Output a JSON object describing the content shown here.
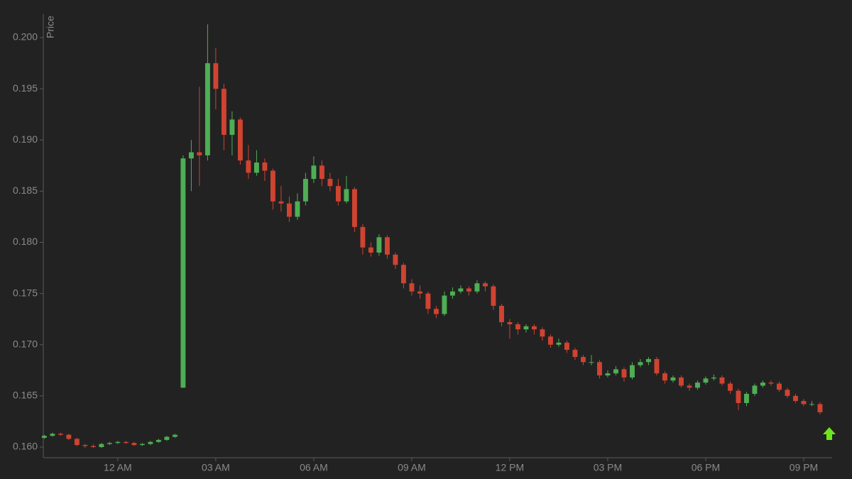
{
  "chart_data": {
    "type": "candlestick",
    "y_label": "Price",
    "x": [
      -2.25,
      -2,
      -1.75,
      -1.5,
      -1.25,
      -1,
      -0.75,
      -0.5,
      -0.25,
      0,
      0.25,
      0.5,
      0.75,
      1,
      1.25,
      1.5,
      1.75,
      2,
      2.25,
      2.5,
      2.75,
      3,
      3.25,
      3.5,
      3.75,
      4,
      4.25,
      4.5,
      4.75,
      5,
      5.25,
      5.5,
      5.75,
      6,
      6.25,
      6.5,
      6.75,
      7,
      7.25,
      7.5,
      7.75,
      8,
      8.25,
      8.5,
      8.75,
      9,
      9.25,
      9.5,
      9.75,
      10,
      10.25,
      10.5,
      10.75,
      11,
      11.25,
      11.5,
      11.75,
      12,
      12.25,
      12.5,
      12.75,
      13,
      13.25,
      13.5,
      13.75,
      14,
      14.25,
      14.5,
      14.75,
      15,
      15.25,
      15.5,
      15.75,
      16,
      16.25,
      16.5,
      16.75,
      17,
      17.25,
      17.5,
      17.75,
      18,
      18.25,
      18.5,
      18.75,
      19,
      19.25,
      19.5,
      19.75,
      20,
      20.25,
      20.5,
      20.75,
      21,
      21.25,
      21.5
    ],
    "open": [
      0.1609,
      0.1611,
      0.1613,
      0.1612,
      0.1608,
      0.1602,
      0.1601,
      0.16,
      0.1603,
      0.1604,
      0.1605,
      0.1604,
      0.1602,
      0.1603,
      0.1605,
      0.1607,
      0.161,
      0.1658,
      0.1882,
      0.1888,
      0.1885,
      0.1975,
      0.195,
      0.1905,
      0.192,
      0.188,
      0.1868,
      0.1878,
      0.187,
      0.184,
      0.1838,
      0.1825,
      0.184,
      0.1862,
      0.1875,
      0.1862,
      0.1855,
      0.184,
      0.1852,
      0.1815,
      0.1795,
      0.179,
      0.1805,
      0.1788,
      0.1778,
      0.176,
      0.1752,
      0.175,
      0.1735,
      0.173,
      0.1748,
      0.1752,
      0.1755,
      0.1752,
      0.176,
      0.1757,
      0.1738,
      0.1722,
      0.172,
      0.1715,
      0.1718,
      0.1715,
      0.1708,
      0.17,
      0.1702,
      0.1695,
      0.1688,
      0.1683,
      0.1683,
      0.167,
      0.1672,
      0.1676,
      0.1668,
      0.168,
      0.1683,
      0.1686,
      0.1672,
      0.1665,
      0.1668,
      0.166,
      0.1658,
      0.1663,
      0.1667,
      0.1668,
      0.1662,
      0.1655,
      0.1643,
      0.1652,
      0.166,
      0.1663,
      0.1662,
      0.1656,
      0.165,
      0.1645,
      0.1642,
      0.1642
    ],
    "high": [
      0.1612,
      0.1614,
      0.1614,
      0.1613,
      0.1609,
      0.1603,
      0.1603,
      0.1604,
      0.1605,
      0.1606,
      0.1606,
      0.1605,
      0.1604,
      0.1606,
      0.1608,
      0.1611,
      0.1613,
      0.1885,
      0.19,
      0.1952,
      0.2013,
      0.199,
      0.1955,
      0.1928,
      0.1922,
      0.1895,
      0.189,
      0.1882,
      0.1872,
      0.1855,
      0.1845,
      0.1848,
      0.1868,
      0.1884,
      0.188,
      0.1868,
      0.1862,
      0.1865,
      0.1854,
      0.1818,
      0.18,
      0.1808,
      0.1807,
      0.179,
      0.178,
      0.1764,
      0.1758,
      0.1752,
      0.1738,
      0.1752,
      0.1756,
      0.1758,
      0.1757,
      0.1763,
      0.1762,
      0.1759,
      0.174,
      0.1725,
      0.1722,
      0.172,
      0.172,
      0.1717,
      0.171,
      0.1706,
      0.1704,
      0.1697,
      0.169,
      0.169,
      0.1685,
      0.1675,
      0.1679,
      0.1678,
      0.1683,
      0.1686,
      0.1688,
      0.1688,
      0.1674,
      0.167,
      0.167,
      0.1662,
      0.1665,
      0.1669,
      0.1671,
      0.167,
      0.1664,
      0.1657,
      0.1654,
      0.1662,
      0.1665,
      0.1665,
      0.1664,
      0.1658,
      0.1652,
      0.1647,
      0.1645,
      0.1644
    ],
    "low": [
      0.1608,
      0.161,
      0.1611,
      0.1607,
      0.1601,
      0.1599,
      0.1599,
      0.1599,
      0.1602,
      0.1603,
      0.1603,
      0.1601,
      0.1601,
      0.1602,
      0.1604,
      0.1606,
      0.1609,
      0.1658,
      0.185,
      0.1855,
      0.188,
      0.193,
      0.189,
      0.1885,
      0.1876,
      0.1862,
      0.1865,
      0.186,
      0.1832,
      0.183,
      0.182,
      0.1822,
      0.1836,
      0.1858,
      0.1855,
      0.185,
      0.1836,
      0.1838,
      0.181,
      0.1788,
      0.1786,
      0.1787,
      0.1784,
      0.1774,
      0.1755,
      0.1748,
      0.1745,
      0.173,
      0.1726,
      0.1728,
      0.1745,
      0.175,
      0.1748,
      0.175,
      0.1752,
      0.1734,
      0.1718,
      0.1706,
      0.171,
      0.1712,
      0.171,
      0.1704,
      0.1697,
      0.1698,
      0.1692,
      0.1685,
      0.168,
      0.168,
      0.1667,
      0.1668,
      0.167,
      0.1664,
      0.1666,
      0.1678,
      0.168,
      0.167,
      0.1662,
      0.1663,
      0.1658,
      0.1655,
      0.1656,
      0.1661,
      0.1665,
      0.166,
      0.1652,
      0.1636,
      0.164,
      0.165,
      0.1658,
      0.166,
      0.1654,
      0.1648,
      0.1643,
      0.164,
      0.164,
      0.1632
    ],
    "close": [
      0.1611,
      0.1613,
      0.1612,
      0.1608,
      0.1602,
      0.1601,
      0.16,
      0.1603,
      0.1604,
      0.1605,
      0.1604,
      0.1602,
      0.1603,
      0.1605,
      0.1607,
      0.161,
      0.1612,
      0.1882,
      0.1888,
      0.1885,
      0.1975,
      0.195,
      0.1905,
      0.192,
      0.188,
      0.1868,
      0.1878,
      0.187,
      0.184,
      0.1838,
      0.1825,
      0.184,
      0.1862,
      0.1875,
      0.1862,
      0.1855,
      0.184,
      0.1852,
      0.1815,
      0.1795,
      0.179,
      0.1805,
      0.1788,
      0.1778,
      0.176,
      0.1752,
      0.175,
      0.1735,
      0.173,
      0.1748,
      0.1752,
      0.1755,
      0.1752,
      0.176,
      0.1757,
      0.1738,
      0.1722,
      0.172,
      0.1715,
      0.1718,
      0.1715,
      0.1708,
      0.17,
      0.1702,
      0.1695,
      0.1688,
      0.1683,
      0.1683,
      0.167,
      0.1672,
      0.1676,
      0.1668,
      0.168,
      0.1683,
      0.1686,
      0.1672,
      0.1665,
      0.1668,
      0.166,
      0.1658,
      0.1663,
      0.1667,
      0.1668,
      0.1662,
      0.1655,
      0.1643,
      0.1652,
      0.166,
      0.1663,
      0.1662,
      0.1656,
      0.165,
      0.1645,
      0.1642,
      0.1642,
      0.1634
    ],
    "up_color": "#4fae55",
    "down_color": "#cf4331",
    "xlim": [
      -2.28,
      21.87
    ],
    "xticks": [
      {
        "value": 0,
        "label": "12 AM"
      },
      {
        "value": 3,
        "label": "03 AM"
      },
      {
        "value": 6,
        "label": "06 AM"
      },
      {
        "value": 9,
        "label": "09 AM"
      },
      {
        "value": 12,
        "label": "12 PM"
      },
      {
        "value": 15,
        "label": "03 PM"
      },
      {
        "value": 18,
        "label": "06 PM"
      },
      {
        "value": 21,
        "label": "09 PM"
      }
    ],
    "ylim": [
      0.15896,
      0.20229
    ],
    "yticks": [
      {
        "value": 0.16,
        "label": "0.160"
      },
      0.165,
      {
        "value": 0.17,
        "label": "0.170"
      },
      0.175,
      {
        "value": 0.18,
        "label": "0.180"
      },
      0.185,
      {
        "value": 0.19,
        "label": "0.190"
      },
      0.195,
      {
        "value": 0.2,
        "label": "0.200"
      }
    ]
  }
}
